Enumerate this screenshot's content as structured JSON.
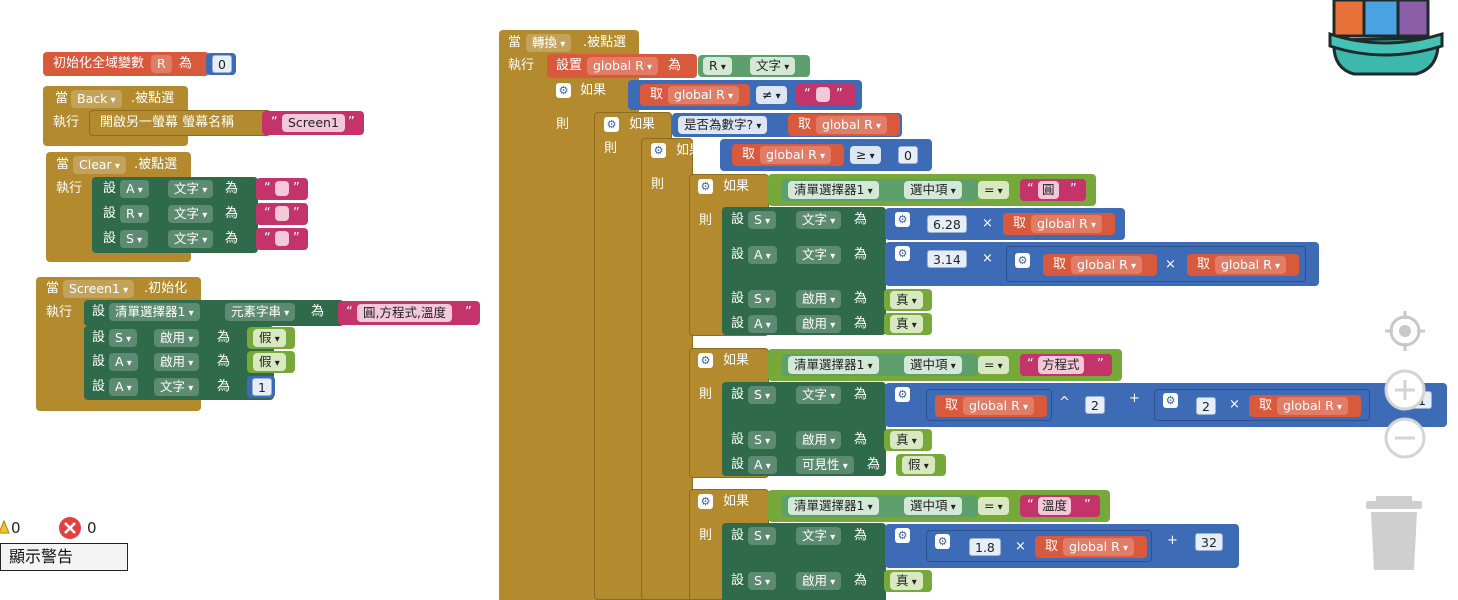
{
  "workspace": {
    "global_init": {
      "prefix": "初始化全域變數",
      "var": "R",
      "to": "為",
      "value": "0"
    },
    "back_handler": {
      "when": "當",
      "component": "Back",
      "event": ".被點選",
      "do": "執行",
      "action": "開啟另一螢幕  螢幕名稱",
      "screen_name": "Screen1"
    },
    "clear_handler": {
      "when": "當",
      "component": "Clear",
      "event": ".被點選",
      "do": "執行",
      "rows": [
        {
          "set": "設",
          "comp": "A",
          "prop": "文字",
          "to": "為",
          "value": ""
        },
        {
          "set": "設",
          "comp": "R",
          "prop": "文字",
          "to": "為",
          "value": ""
        },
        {
          "set": "設",
          "comp": "S",
          "prop": "文字",
          "to": "為",
          "value": ""
        }
      ]
    },
    "screen_init": {
      "when": "當",
      "component": "Screen1",
      "event": ".初始化",
      "do": "執行",
      "rows": [
        {
          "set": "設",
          "comp": "清單選擇器1",
          "prop": "元素字串",
          "to": "為",
          "value": "圓,方程式,溫度"
        },
        {
          "set": "設",
          "comp": "S",
          "prop": "啟用",
          "to": "為",
          "value": "假"
        },
        {
          "set": "設",
          "comp": "A",
          "prop": "啟用",
          "to": "為",
          "value": "假"
        },
        {
          "set": "設",
          "comp": "A",
          "prop": "文字",
          "to": "為",
          "value": "1"
        }
      ]
    },
    "convert_handler": {
      "when": "當",
      "component": "轉換",
      "event": ".被點選",
      "do": "執行",
      "set_global": {
        "label": "設置",
        "var": "global R",
        "to": "為",
        "src": "R",
        "prop": "文字"
      },
      "if_label": "如果",
      "then_label": "則",
      "get": "取",
      "global_r": "global R",
      "neq": "≠",
      "empty": "",
      "is_number": "是否為數字?",
      "gte": "≥",
      "zero": "0",
      "list_comp": "清單選擇器1",
      "selected": "選中項",
      "eq": "=",
      "opt_circle": "圓",
      "opt_equation": "方程式",
      "opt_temp": "溫度",
      "set": "設",
      "to": "為",
      "prop_text": "文字",
      "prop_enabled": "啟用",
      "prop_visible": "可見性",
      "true_val": "真",
      "false_val": "假",
      "times": "×",
      "plus": "+",
      "pow": "^",
      "n_628": "6.28",
      "n_314": "3.14",
      "n_2": "2",
      "n_1": "1",
      "n_18": "1.8",
      "n_32": "32",
      "comp_s": "S",
      "comp_a": "A"
    }
  },
  "warnings": {
    "warning_count": "0",
    "error_count": "0",
    "button_label": "顯示警告"
  }
}
